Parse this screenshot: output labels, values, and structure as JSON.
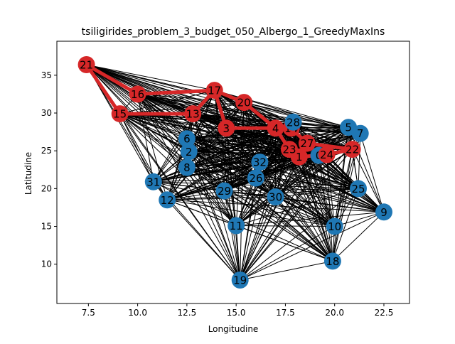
{
  "chart_data": {
    "type": "scatter",
    "title": "tsiligirides_problem_3_budget_050_Albergo_1_GreedyMaxIns",
    "xlabel": "Longitudine",
    "ylabel": "Latitudine",
    "xlim": [
      5.9,
      23.8
    ],
    "ylim": [
      4.8,
      39.5
    ],
    "xticks": [
      7.5,
      10.0,
      12.5,
      15.0,
      17.5,
      20.0,
      22.5
    ],
    "xtick_labels": [
      "7.5",
      "10.0",
      "12.5",
      "15.0",
      "17.5",
      "20.0",
      "22.5"
    ],
    "yticks": [
      10,
      15,
      20,
      25,
      30,
      35
    ],
    "ytick_labels": [
      "10",
      "15",
      "20",
      "25",
      "30",
      "35"
    ],
    "grid": false,
    "colors": {
      "visited": "#d62728",
      "unvisited": "#1f77b4",
      "edge": "#000000",
      "route": "#d62728"
    },
    "nodes": [
      {
        "id": "0",
        "x": 19.2,
        "y": 24.4,
        "visited": false
      },
      {
        "id": "1",
        "x": 18.2,
        "y": 24.2,
        "visited": true
      },
      {
        "id": "2",
        "x": 12.6,
        "y": 24.9,
        "visited": false
      },
      {
        "id": "3",
        "x": 14.5,
        "y": 28.0,
        "visited": true
      },
      {
        "id": "4",
        "x": 17.0,
        "y": 28.0,
        "visited": true
      },
      {
        "id": "5",
        "x": 20.7,
        "y": 28.1,
        "visited": false
      },
      {
        "id": "6",
        "x": 12.5,
        "y": 26.6,
        "visited": false
      },
      {
        "id": "7",
        "x": 21.3,
        "y": 27.3,
        "visited": false
      },
      {
        "id": "8",
        "x": 12.5,
        "y": 22.8,
        "visited": false
      },
      {
        "id": "9",
        "x": 22.5,
        "y": 16.9,
        "visited": false
      },
      {
        "id": "10",
        "x": 20.0,
        "y": 15.0,
        "visited": false
      },
      {
        "id": "11",
        "x": 15.0,
        "y": 15.1,
        "visited": false
      },
      {
        "id": "12",
        "x": 11.5,
        "y": 18.5,
        "visited": false
      },
      {
        "id": "13",
        "x": 12.8,
        "y": 29.9,
        "visited": true
      },
      {
        "id": "14",
        "x": 17.8,
        "y": 28.0,
        "visited": true
      },
      {
        "id": "15",
        "x": 9.1,
        "y": 29.9,
        "visited": true
      },
      {
        "id": "16",
        "x": 10.0,
        "y": 32.5,
        "visited": true
      },
      {
        "id": "17",
        "x": 13.9,
        "y": 33.0,
        "visited": true
      },
      {
        "id": "18",
        "x": 19.9,
        "y": 10.4,
        "visited": false
      },
      {
        "id": "19",
        "x": 15.2,
        "y": 7.9,
        "visited": false
      },
      {
        "id": "20",
        "x": 15.4,
        "y": 31.4,
        "visited": true
      },
      {
        "id": "21",
        "x": 7.4,
        "y": 36.4,
        "visited": true
      },
      {
        "id": "22",
        "x": 20.9,
        "y": 25.2,
        "visited": true
      },
      {
        "id": "23",
        "x": 17.7,
        "y": 25.2,
        "visited": true
      },
      {
        "id": "24",
        "x": 19.6,
        "y": 24.5,
        "visited": true
      },
      {
        "id": "25",
        "x": 21.2,
        "y": 20.0,
        "visited": false
      },
      {
        "id": "26",
        "x": 16.0,
        "y": 21.4,
        "visited": false
      },
      {
        "id": "27",
        "x": 18.6,
        "y": 26.0,
        "visited": true
      },
      {
        "id": "28",
        "x": 17.9,
        "y": 28.8,
        "visited": false
      },
      {
        "id": "29",
        "x": 14.4,
        "y": 19.7,
        "visited": false
      },
      {
        "id": "30",
        "x": 17.0,
        "y": 18.9,
        "visited": false
      },
      {
        "id": "31",
        "x": 10.8,
        "y": 20.9,
        "visited": false
      },
      {
        "id": "32",
        "x": 16.2,
        "y": 23.5,
        "visited": false
      }
    ],
    "route": [
      "21",
      "16",
      "17",
      "20",
      "4",
      "14",
      "27",
      "22",
      "24",
      "1",
      "23",
      "4",
      "3",
      "17",
      "13",
      "15",
      "21"
    ]
  }
}
